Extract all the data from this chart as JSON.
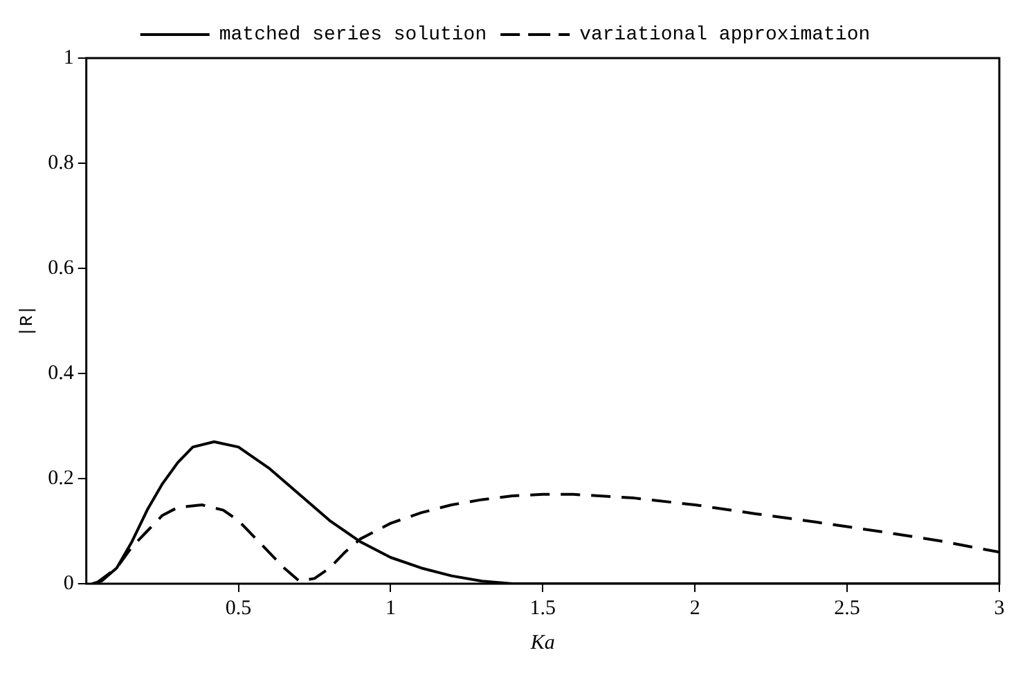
{
  "chart_data": {
    "type": "line",
    "xlabel": "Ka",
    "ylabel": "|R|",
    "xlim": [
      0,
      3
    ],
    "ylim": [
      0,
      1
    ],
    "xticks": [
      0.5,
      1,
      1.5,
      2,
      2.5,
      3
    ],
    "yticks": [
      0,
      0.2,
      0.4,
      0.6,
      0.8,
      1
    ],
    "grid": false,
    "legend": "top",
    "marker": "none",
    "series": [
      {
        "name": "matched series solution",
        "color": "#000000",
        "line_style": "solid",
        "x": [
          0.02,
          0.05,
          0.1,
          0.15,
          0.2,
          0.25,
          0.3,
          0.35,
          0.42,
          0.5,
          0.6,
          0.7,
          0.8,
          0.9,
          1.0,
          1.1,
          1.2,
          1.3,
          1.4,
          2,
          3
        ],
        "values": [
          0,
          0.005,
          0.03,
          0.08,
          0.14,
          0.19,
          0.23,
          0.26,
          0.27,
          0.26,
          0.22,
          0.17,
          0.12,
          0.08,
          0.05,
          0.03,
          0.015,
          0.005,
          0,
          0,
          0
        ]
      },
      {
        "name": "variational approximation",
        "color": "#000000",
        "line_style": "dashed",
        "x": [
          0.03,
          0.1,
          0.15,
          0.2,
          0.25,
          0.3,
          0.38,
          0.45,
          0.5,
          0.55,
          0.6,
          0.65,
          0.7,
          0.75,
          0.8,
          0.85,
          0.9,
          1.0,
          1.1,
          1.2,
          1.3,
          1.4,
          1.5,
          1.6,
          1.8,
          2.0,
          2.2,
          2.4,
          2.6,
          2.8,
          3.0
        ],
        "values": [
          0,
          0.03,
          0.07,
          0.1,
          0.13,
          0.145,
          0.15,
          0.14,
          0.12,
          0.09,
          0.06,
          0.03,
          0.005,
          0.01,
          0.03,
          0.06,
          0.085,
          0.115,
          0.135,
          0.15,
          0.16,
          0.167,
          0.17,
          0.17,
          0.163,
          0.15,
          0.133,
          0.117,
          0.1,
          0.082,
          0.06
        ]
      }
    ]
  }
}
